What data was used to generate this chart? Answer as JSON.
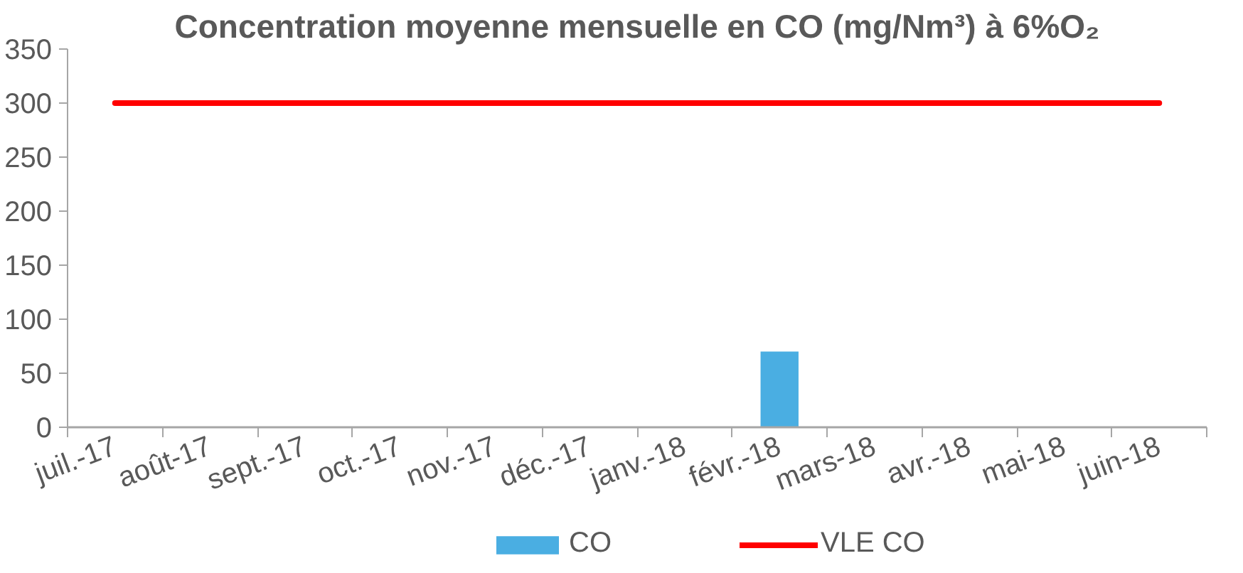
{
  "chart_data": {
    "type": "bar",
    "title": "Concentration moyenne mensuelle en CO (mg/Nm³) à 6%O₂",
    "categories": [
      "juil.-17",
      "août-17",
      "sept.-17",
      "oct.-17",
      "nov.-17",
      "déc.-17",
      "janv.-18",
      "févr.-18",
      "mars-18",
      "avr.-18",
      "mai-18",
      "juin-18"
    ],
    "series": [
      {
        "name": "CO",
        "color": "#4aaee2",
        "values": [
          null,
          null,
          null,
          null,
          null,
          null,
          null,
          70,
          null,
          null,
          null,
          null
        ]
      },
      {
        "name": "VLE CO",
        "type": "line",
        "color": "#ff0000",
        "values": [
          300,
          300,
          300,
          300,
          300,
          300,
          300,
          300,
          300,
          300,
          300,
          300
        ]
      }
    ],
    "ylim": [
      0,
      350
    ],
    "yticks": [
      0,
      50,
      100,
      150,
      200,
      250,
      300,
      350
    ],
    "grid": false,
    "legend": "bottom"
  }
}
